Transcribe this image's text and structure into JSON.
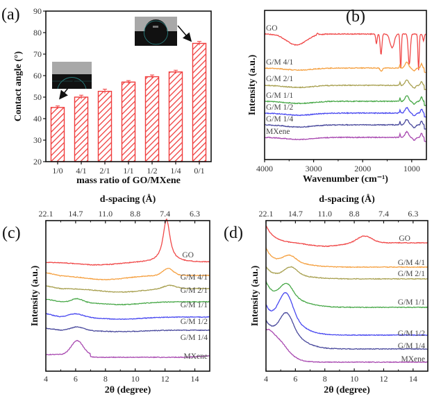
{
  "chart_data": [
    {
      "id": "a",
      "panel_label": "(a)",
      "type": "bar",
      "title": "",
      "xlabel": "mass ratio of GO/MXene",
      "ylabel": "Contact angle (°)",
      "categories": [
        "1/0",
        "4/1",
        "2/1",
        "1/1",
        "1/2",
        "1/4",
        "0/1"
      ],
      "values": [
        45.2,
        50.0,
        52.7,
        57.0,
        59.5,
        61.7,
        75.0
      ],
      "errors": [
        0.7,
        0.9,
        1.0,
        0.7,
        0.8,
        0.8,
        0.9
      ],
      "ylim": [
        20,
        90
      ],
      "yticks": [
        20,
        30,
        40,
        50,
        60,
        70,
        80,
        90
      ],
      "bar_color": "#f03c3c",
      "bar_pattern": "diagonal-hatch",
      "insets": [
        {
          "name": "droplet-image-GO",
          "points_to": "1/0",
          "description": "water droplet on GO membrane"
        },
        {
          "name": "droplet-image-MXene",
          "points_to": "0/1",
          "description": "water droplet on MXene membrane"
        }
      ]
    },
    {
      "id": "b",
      "panel_label": "(b)",
      "type": "line",
      "title": "",
      "xlabel": "Wavenumber (cm⁻¹)",
      "ylabel": "Intensity (a.u.)",
      "xlim": [
        4000,
        700
      ],
      "xticks": [
        4000,
        3000,
        2000,
        1000
      ],
      "series": [
        {
          "name": "GO",
          "color": "#f04848",
          "baseline": 0.0
        },
        {
          "name": "G/M 4/1",
          "color": "#f5a040",
          "baseline": 1.0
        },
        {
          "name": "G/M 2/1",
          "color": "#a8a050",
          "baseline": 1.5
        },
        {
          "name": "G/M 1/1",
          "color": "#48a848",
          "baseline": 2.0
        },
        {
          "name": "G/M 1/2",
          "color": "#4848f0",
          "baseline": 2.4
        },
        {
          "name": "G/M 1/4",
          "color": "#48489c",
          "baseline": 2.8
        },
        {
          "name": "MXene",
          "color": "#a848b0",
          "baseline": 3.2
        }
      ]
    },
    {
      "id": "c",
      "panel_label": "(c)",
      "type": "line",
      "title": "",
      "xlabel": "2θ (degree)",
      "ylabel": "Intensity (a.u.)",
      "top_xlabel": "d-spacing (Å)",
      "xlim": [
        4,
        15
      ],
      "xticks": [
        4,
        6,
        8,
        10,
        12,
        14
      ],
      "top_ticks": [
        {
          "label": "22.1",
          "x": 4
        },
        {
          "label": "14.7",
          "x": 6
        },
        {
          "label": "11.0",
          "x": 8
        },
        {
          "label": "8.8",
          "x": 10
        },
        {
          "label": "7.4",
          "x": 12
        },
        {
          "label": "6.3",
          "x": 14
        }
      ],
      "series": [
        {
          "name": "GO",
          "color": "#f04848",
          "peak_2theta": 12.1,
          "peak_height": "strong"
        },
        {
          "name": "G/M 4/1",
          "color": "#f5a040",
          "peak_2theta": 12.2,
          "peak_height": "weak"
        },
        {
          "name": "G/M 2/1",
          "color": "#a8a050",
          "peak_2theta": 12.2,
          "peak_height": "very weak"
        },
        {
          "name": "G/M 1/1",
          "color": "#48a848",
          "peak_2theta": 6.2,
          "peak_height": "weak"
        },
        {
          "name": "G/M 1/2",
          "color": "#4848f0",
          "peak_2theta": 6.0,
          "peak_height": "weak"
        },
        {
          "name": "G/M 1/4",
          "color": "#48489c",
          "peak_2theta": 6.1,
          "peak_height": "weak"
        },
        {
          "name": "MXene",
          "color": "#a848b0",
          "peak_2theta": 6.1,
          "peak_height": "medium"
        }
      ]
    },
    {
      "id": "d",
      "panel_label": "(d)",
      "type": "line",
      "title": "",
      "xlabel": "2θ (degree)",
      "ylabel": "Intensity (a.u.)",
      "top_xlabel": "d-spacing (Å)",
      "xlim": [
        4,
        15
      ],
      "xticks": [
        4,
        6,
        8,
        10,
        12,
        14
      ],
      "top_ticks": [
        {
          "label": "22.1",
          "x": 4
        },
        {
          "label": "14.7",
          "x": 6
        },
        {
          "label": "11.0",
          "x": 8
        },
        {
          "label": "8.8",
          "x": 10
        },
        {
          "label": "7.4",
          "x": 12
        },
        {
          "label": "6.3",
          "x": 14
        }
      ],
      "series": [
        {
          "name": "GO",
          "color": "#f04848",
          "peak_2theta": 10.7,
          "peak_height": "weak"
        },
        {
          "name": "G/M 4/1",
          "color": "#f5a040",
          "peak_2theta": 5.7,
          "peak_height": "medium"
        },
        {
          "name": "G/M 2/1",
          "color": "#a8a050",
          "peak_2theta": 5.7,
          "peak_height": "medium"
        },
        {
          "name": "G/M 1/1",
          "color": "#48a848",
          "peak_2theta": 5.4,
          "peak_height": "medium"
        },
        {
          "name": "G/M 1/2",
          "color": "#4848f0",
          "peak_2theta": 5.3,
          "peak_height": "strong"
        },
        {
          "name": "G/M 1/4",
          "color": "#48489c",
          "peak_2theta": 5.4,
          "peak_height": "strong"
        },
        {
          "name": "MXene",
          "color": "#a848b0",
          "peak_2theta": 4.8,
          "peak_height": "shoulder"
        }
      ]
    }
  ]
}
